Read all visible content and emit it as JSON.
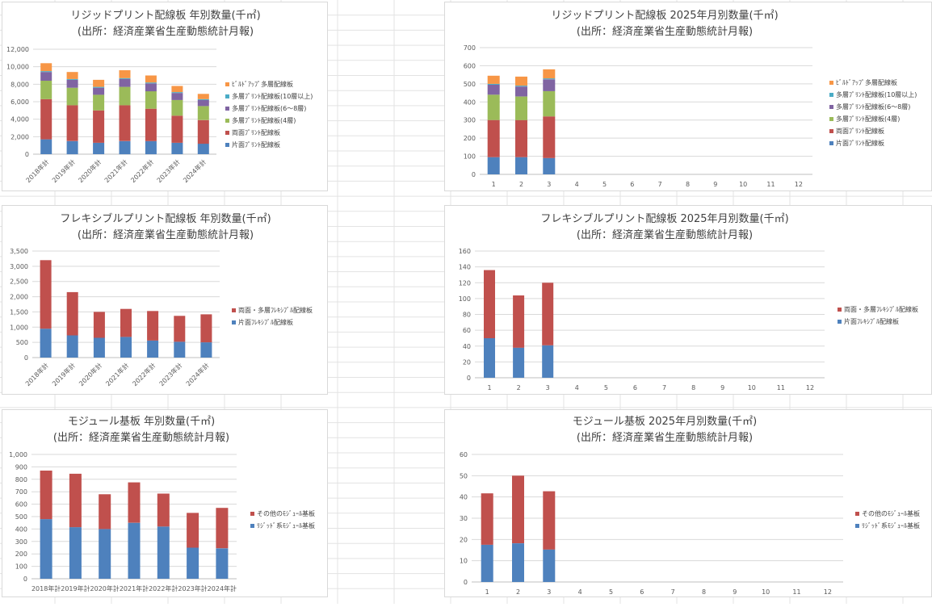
{
  "colors": {
    "single_rigid": "#4e81bd",
    "double_rigid": "#c0504d",
    "ml4": "#9bbb59",
    "ml68": "#8064a2",
    "ml10": "#4bacc6",
    "buildup": "#f79646",
    "flex_single": "#4e81bd",
    "flex_double": "#c0504d",
    "mod_rigid": "#4e81bd",
    "mod_other": "#c0504d"
  },
  "chart_data": [
    {
      "id": "rigid-annual",
      "type": "bar",
      "stacked": true,
      "title": "リジッドプリント配線板  年別数量(千㎡)",
      "subtitle": "(出所：経済産業省生産動態統計月報)",
      "categories": [
        "2018年計",
        "2019年計",
        "2020年計",
        "2021年計",
        "2022年計",
        "2023年計",
        "2024年計"
      ],
      "ylim": [
        0,
        12000
      ],
      "yticks": [
        "0",
        "2,000",
        "4,000",
        "6,000",
        "8,000",
        "10,000",
        "12,000"
      ],
      "xlabel": "",
      "ylabel": "",
      "grid": true,
      "legend_position": "right",
      "series": [
        {
          "name": "片面ﾌﾟﾘﾝﾄ配線板",
          "color_key": "single_rigid",
          "values": [
            1700,
            1500,
            1300,
            1500,
            1500,
            1300,
            1200
          ]
        },
        {
          "name": "両面ﾌﾟﾘﾝﾄ配線板",
          "color_key": "double_rigid",
          "values": [
            4600,
            4100,
            3700,
            4100,
            3700,
            3100,
            2700
          ]
        },
        {
          "name": "多層ﾌﾟﾘﾝﾄ配線板(4層)",
          "color_key": "ml4",
          "values": [
            2100,
            2000,
            1800,
            2100,
            2000,
            1800,
            1600
          ]
        },
        {
          "name": "多層ﾌﾟﾘﾝﾄ配線板(6～8層)",
          "color_key": "ml68",
          "values": [
            1000,
            900,
            800,
            900,
            900,
            800,
            700
          ]
        },
        {
          "name": "多層ﾌﾟﾘﾝﾄ配線板(10層以上)",
          "color_key": "ml10",
          "values": [
            100,
            100,
            100,
            100,
            100,
            100,
            100
          ]
        },
        {
          "name": "ﾋﾞﾙﾄﾞｱｯﾌﾟ多層配線板",
          "color_key": "buildup",
          "values": [
            900,
            800,
            800,
            900,
            800,
            700,
            600
          ]
        }
      ]
    },
    {
      "id": "rigid-monthly",
      "type": "bar",
      "stacked": true,
      "title": "リジッドプリント配線板  2025年月別数量(千㎡)",
      "subtitle": "(出所：経済産業省生産動態統計月報)",
      "categories": [
        "1",
        "2",
        "3",
        "4",
        "5",
        "6",
        "7",
        "8",
        "9",
        "10",
        "11",
        "12"
      ],
      "ylim": [
        0,
        700
      ],
      "yticks": [
        "0",
        "100",
        "200",
        "300",
        "400",
        "500",
        "600",
        "700"
      ],
      "xlabel": "",
      "ylabel": "",
      "grid": true,
      "legend_position": "right",
      "series": [
        {
          "name": "片面ﾌﾟﾘﾝﾄ配線板",
          "color_key": "single_rigid",
          "values": [
            95,
            95,
            90,
            null,
            null,
            null,
            null,
            null,
            null,
            null,
            null,
            null
          ]
        },
        {
          "name": "両面ﾌﾟﾘﾝﾄ配線板",
          "color_key": "double_rigid",
          "values": [
            205,
            205,
            230,
            null,
            null,
            null,
            null,
            null,
            null,
            null,
            null,
            null
          ]
        },
        {
          "name": "多層ﾌﾟﾘﾝﾄ配線板(4層)",
          "color_key": "ml4",
          "values": [
            140,
            130,
            140,
            null,
            null,
            null,
            null,
            null,
            null,
            null,
            null,
            null
          ]
        },
        {
          "name": "多層ﾌﾟﾘﾝﾄ配線板(6～8層)",
          "color_key": "ml68",
          "values": [
            55,
            55,
            65,
            null,
            null,
            null,
            null,
            null,
            null,
            null,
            null,
            null
          ]
        },
        {
          "name": "多層ﾌﾟﾘﾝﾄ配線板(10層以上)",
          "color_key": "ml10",
          "values": [
            5,
            5,
            5,
            null,
            null,
            null,
            null,
            null,
            null,
            null,
            null,
            null
          ]
        },
        {
          "name": "ﾋﾞﾙﾄﾞｱｯﾌﾟ多層配線板",
          "color_key": "buildup",
          "values": [
            45,
            50,
            50,
            null,
            null,
            null,
            null,
            null,
            null,
            null,
            null,
            null
          ]
        }
      ]
    },
    {
      "id": "flex-annual",
      "type": "bar",
      "stacked": true,
      "title": "フレキシブルプリント配線板  年別数量(千㎡)",
      "subtitle": "(出所：経済産業省生産動態統計月報)",
      "categories": [
        "2018年計",
        "2019年計",
        "2020年計",
        "2021年計",
        "2022年計",
        "2023年計",
        "2024年計"
      ],
      "ylim": [
        0,
        3500
      ],
      "yticks": [
        "0",
        "500",
        "1,000",
        "1,500",
        "2,000",
        "2,500",
        "3,000",
        "3,500"
      ],
      "xlabel": "",
      "ylabel": "",
      "grid": true,
      "legend_position": "right",
      "series": [
        {
          "name": "片面ﾌﾚｷｼﾌﾞﾙ配線板",
          "color_key": "flex_single",
          "values": [
            950,
            730,
            650,
            680,
            560,
            520,
            500
          ]
        },
        {
          "name": "両面・多層ﾌﾚｷｼﾌﾞﾙ配線板",
          "color_key": "flex_double",
          "values": [
            2250,
            1420,
            850,
            920,
            970,
            850,
            920
          ]
        }
      ]
    },
    {
      "id": "flex-monthly",
      "type": "bar",
      "stacked": true,
      "title": "フレキシブルプリント配線板  2025年月別数量(千㎡)",
      "subtitle": "(出所：経済産業省生産動態統計月報)",
      "categories": [
        "1",
        "2",
        "3",
        "4",
        "5",
        "6",
        "7",
        "8",
        "9",
        "10",
        "11",
        "12"
      ],
      "ylim": [
        0,
        160
      ],
      "yticks": [
        "0",
        "20",
        "40",
        "60",
        "80",
        "100",
        "120",
        "140",
        "160"
      ],
      "xlabel": "",
      "ylabel": "",
      "grid": true,
      "legend_position": "right",
      "series": [
        {
          "name": "片面ﾌﾚｷｼﾌﾞﾙ配線板",
          "color_key": "flex_single",
          "values": [
            50,
            38,
            41,
            null,
            null,
            null,
            null,
            null,
            null,
            null,
            null,
            null
          ]
        },
        {
          "name": "両面・多層ﾌﾚｷｼﾌﾞﾙ配線板",
          "color_key": "flex_double",
          "values": [
            86,
            66,
            79,
            null,
            null,
            null,
            null,
            null,
            null,
            null,
            null,
            null
          ]
        }
      ]
    },
    {
      "id": "module-annual",
      "type": "bar",
      "stacked": true,
      "title": "モジュール基板  年別数量(千㎡)",
      "subtitle": "(出所：経済産業省生産動態統計月報)",
      "categories": [
        "2018年計",
        "2019年計",
        "2020年計",
        "2021年計",
        "2022年計",
        "2023年計",
        "2024年計"
      ],
      "ylim": [
        0,
        1000
      ],
      "yticks": [
        "0",
        "100",
        "200",
        "300",
        "400",
        "500",
        "600",
        "700",
        "800",
        "900",
        "1,000"
      ],
      "xlabel": "",
      "ylabel": "",
      "grid": true,
      "legend_position": "right",
      "series": [
        {
          "name": "ﾘｼﾞｯﾄﾞ系ﾓｼﾞｭｰﾙ基板",
          "color_key": "mod_rigid",
          "values": [
            480,
            415,
            400,
            450,
            420,
            250,
            245
          ]
        },
        {
          "name": "その他のﾓｼﾞｭｰﾙ基板",
          "color_key": "mod_other",
          "values": [
            390,
            430,
            280,
            325,
            265,
            280,
            325
          ]
        }
      ]
    },
    {
      "id": "module-monthly",
      "type": "bar",
      "stacked": true,
      "title": "モジュール基板  2025年月別数量(千㎡)",
      "subtitle": "(出所：経済産業省生産動態統計月報)",
      "categories": [
        "1",
        "2",
        "3",
        "4",
        "5",
        "6",
        "7",
        "8",
        "9",
        "10",
        "11",
        "12"
      ],
      "ylim": [
        0,
        60
      ],
      "yticks": [
        "0",
        "10",
        "20",
        "30",
        "40",
        "50",
        "60"
      ],
      "xlabel": "",
      "ylabel": "",
      "grid": true,
      "legend_position": "right",
      "series": [
        {
          "name": "ﾘｼﾞｯﾄﾞ系ﾓｼﾞｭｰﾙ基板",
          "color_key": "mod_rigid",
          "values": [
            17.5,
            18.2,
            15.3,
            null,
            null,
            null,
            null,
            null,
            null,
            null,
            null,
            null
          ]
        },
        {
          "name": "その他のﾓｼﾞｭｰﾙ基板",
          "color_key": "mod_other",
          "values": [
            24.2,
            31.8,
            27.4,
            null,
            null,
            null,
            null,
            null,
            null,
            null,
            null,
            null
          ]
        }
      ]
    }
  ]
}
